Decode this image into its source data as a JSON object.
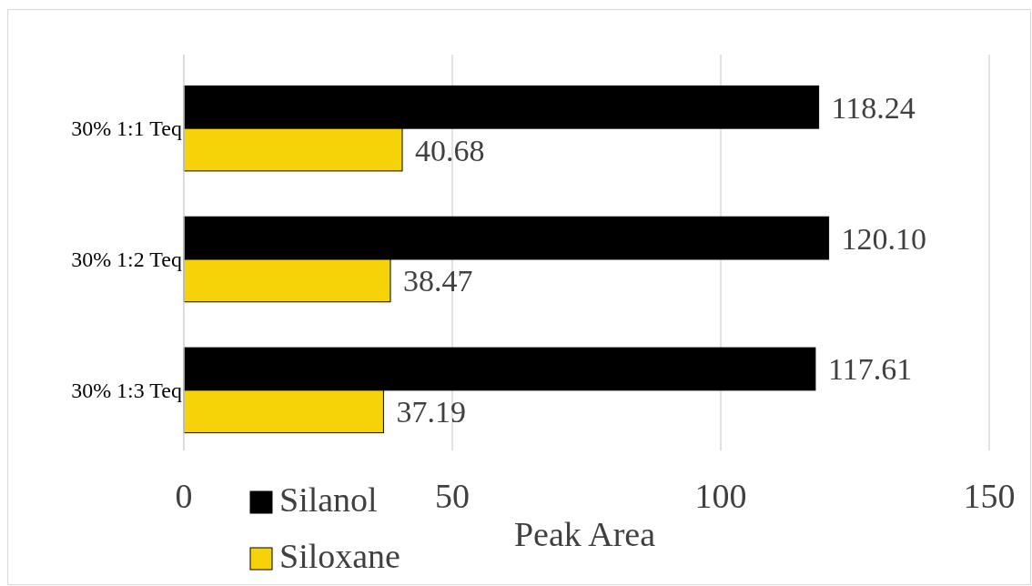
{
  "chart_data": {
    "type": "bar",
    "orientation": "horizontal",
    "xlabel": "Peak Area",
    "categories": [
      "30% 1:1 Teq",
      "30% 1:2 Teq",
      "30% 1:3 Teq"
    ],
    "series": [
      {
        "name": "Silanol",
        "color": "#000000",
        "values": [
          118.24,
          120.1,
          117.61
        ],
        "value_labels": [
          "118.24",
          "120.10",
          "117.61"
        ]
      },
      {
        "name": "Siloxane",
        "color": "#f5d308",
        "values": [
          40.68,
          38.47,
          37.19
        ],
        "value_labels": [
          "40.68",
          "38.47",
          "37.19"
        ]
      }
    ],
    "xlim": [
      0,
      150
    ],
    "xticks": [
      0,
      50,
      100,
      150
    ],
    "grid": "x",
    "legend": "bottom left"
  }
}
